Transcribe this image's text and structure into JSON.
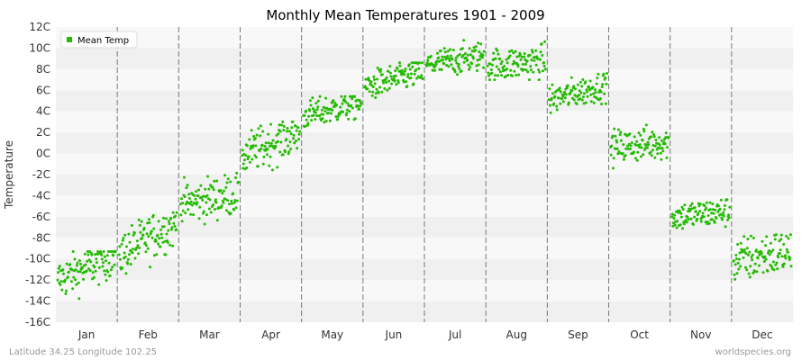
{
  "chart_data": {
    "type": "scatter",
    "title": "Monthly Mean Temperatures 1901 - 2009",
    "xlabel": "",
    "ylabel": "Temperature",
    "categories": [
      "Jan",
      "Feb",
      "Mar",
      "Apr",
      "May",
      "Jun",
      "Jul",
      "Aug",
      "Sep",
      "Oct",
      "Nov",
      "Dec"
    ],
    "ylim": [
      -16,
      12
    ],
    "yticks": [
      "12C",
      "10C",
      "8C",
      "6C",
      "4C",
      "2C",
      "0C",
      "-2C",
      "-4C",
      "-6C",
      "-8C",
      "-10C",
      "-12C",
      "-14C",
      "-16C"
    ],
    "ytick_values": [
      12,
      10,
      8,
      6,
      4,
      2,
      0,
      -2,
      -4,
      -6,
      -8,
      -10,
      -12,
      -14,
      -16
    ],
    "grid": "horizontal bands, dashed month separators",
    "legend": {
      "position": "top-left",
      "entries": [
        "Mean Temp"
      ]
    },
    "series": [
      {
        "name": "Mean Temp",
        "color": "#22bb00",
        "years_per_month": 109,
        "monthly_points": [
          {
            "month": "Jan",
            "start": -12.0,
            "end": -9.6,
            "mean": -11.3,
            "spread": 1.0,
            "min": -14.5,
            "max": -9.3
          },
          {
            "month": "Feb",
            "start": -9.6,
            "end": -6.6,
            "mean": -8.7,
            "spread": 1.1,
            "min": -12.5,
            "max": -5.6
          },
          {
            "month": "Mar",
            "start": -4.8,
            "end": -3.8,
            "mean": -4.3,
            "spread": 1.0,
            "min": -6.9,
            "max": -1.7
          },
          {
            "month": "Apr",
            "start": -0.2,
            "end": 2.0,
            "mean": 0.4,
            "spread": 1.0,
            "min": -2.5,
            "max": 3.0
          },
          {
            "month": "May",
            "start": 3.6,
            "end": 4.8,
            "mean": 3.9,
            "spread": 0.7,
            "min": 2.5,
            "max": 5.4
          },
          {
            "month": "Jun",
            "start": 6.3,
            "end": 7.8,
            "mean": 6.8,
            "spread": 0.7,
            "min": 5.3,
            "max": 8.6
          },
          {
            "month": "Jul",
            "start": 8.4,
            "end": 9.3,
            "mean": 9.1,
            "spread": 0.7,
            "min": 7.3,
            "max": 10.8
          },
          {
            "month": "Aug",
            "start": 8.3,
            "end": 8.8,
            "mean": 8.6,
            "spread": 0.8,
            "min": 7.0,
            "max": 10.6
          },
          {
            "month": "Sep",
            "start": 5.1,
            "end": 6.5,
            "mean": 5.7,
            "spread": 0.7,
            "min": 3.6,
            "max": 7.6
          },
          {
            "month": "Oct",
            "start": 0.6,
            "end": 1.1,
            "mean": 0.7,
            "spread": 0.8,
            "min": -1.6,
            "max": 2.7
          },
          {
            "month": "Nov",
            "start": -6.0,
            "end": -5.5,
            "mean": -5.8,
            "spread": 0.7,
            "min": -8.5,
            "max": -3.1
          },
          {
            "month": "Dec",
            "start": -10.2,
            "end": -9.2,
            "mean": -10.2,
            "spread": 1.1,
            "min": -13.6,
            "max": -7.7
          }
        ]
      }
    ]
  },
  "footer": {
    "left": "Latitude 34.25 Longitude 102.25",
    "right": "worldspecies.org"
  }
}
